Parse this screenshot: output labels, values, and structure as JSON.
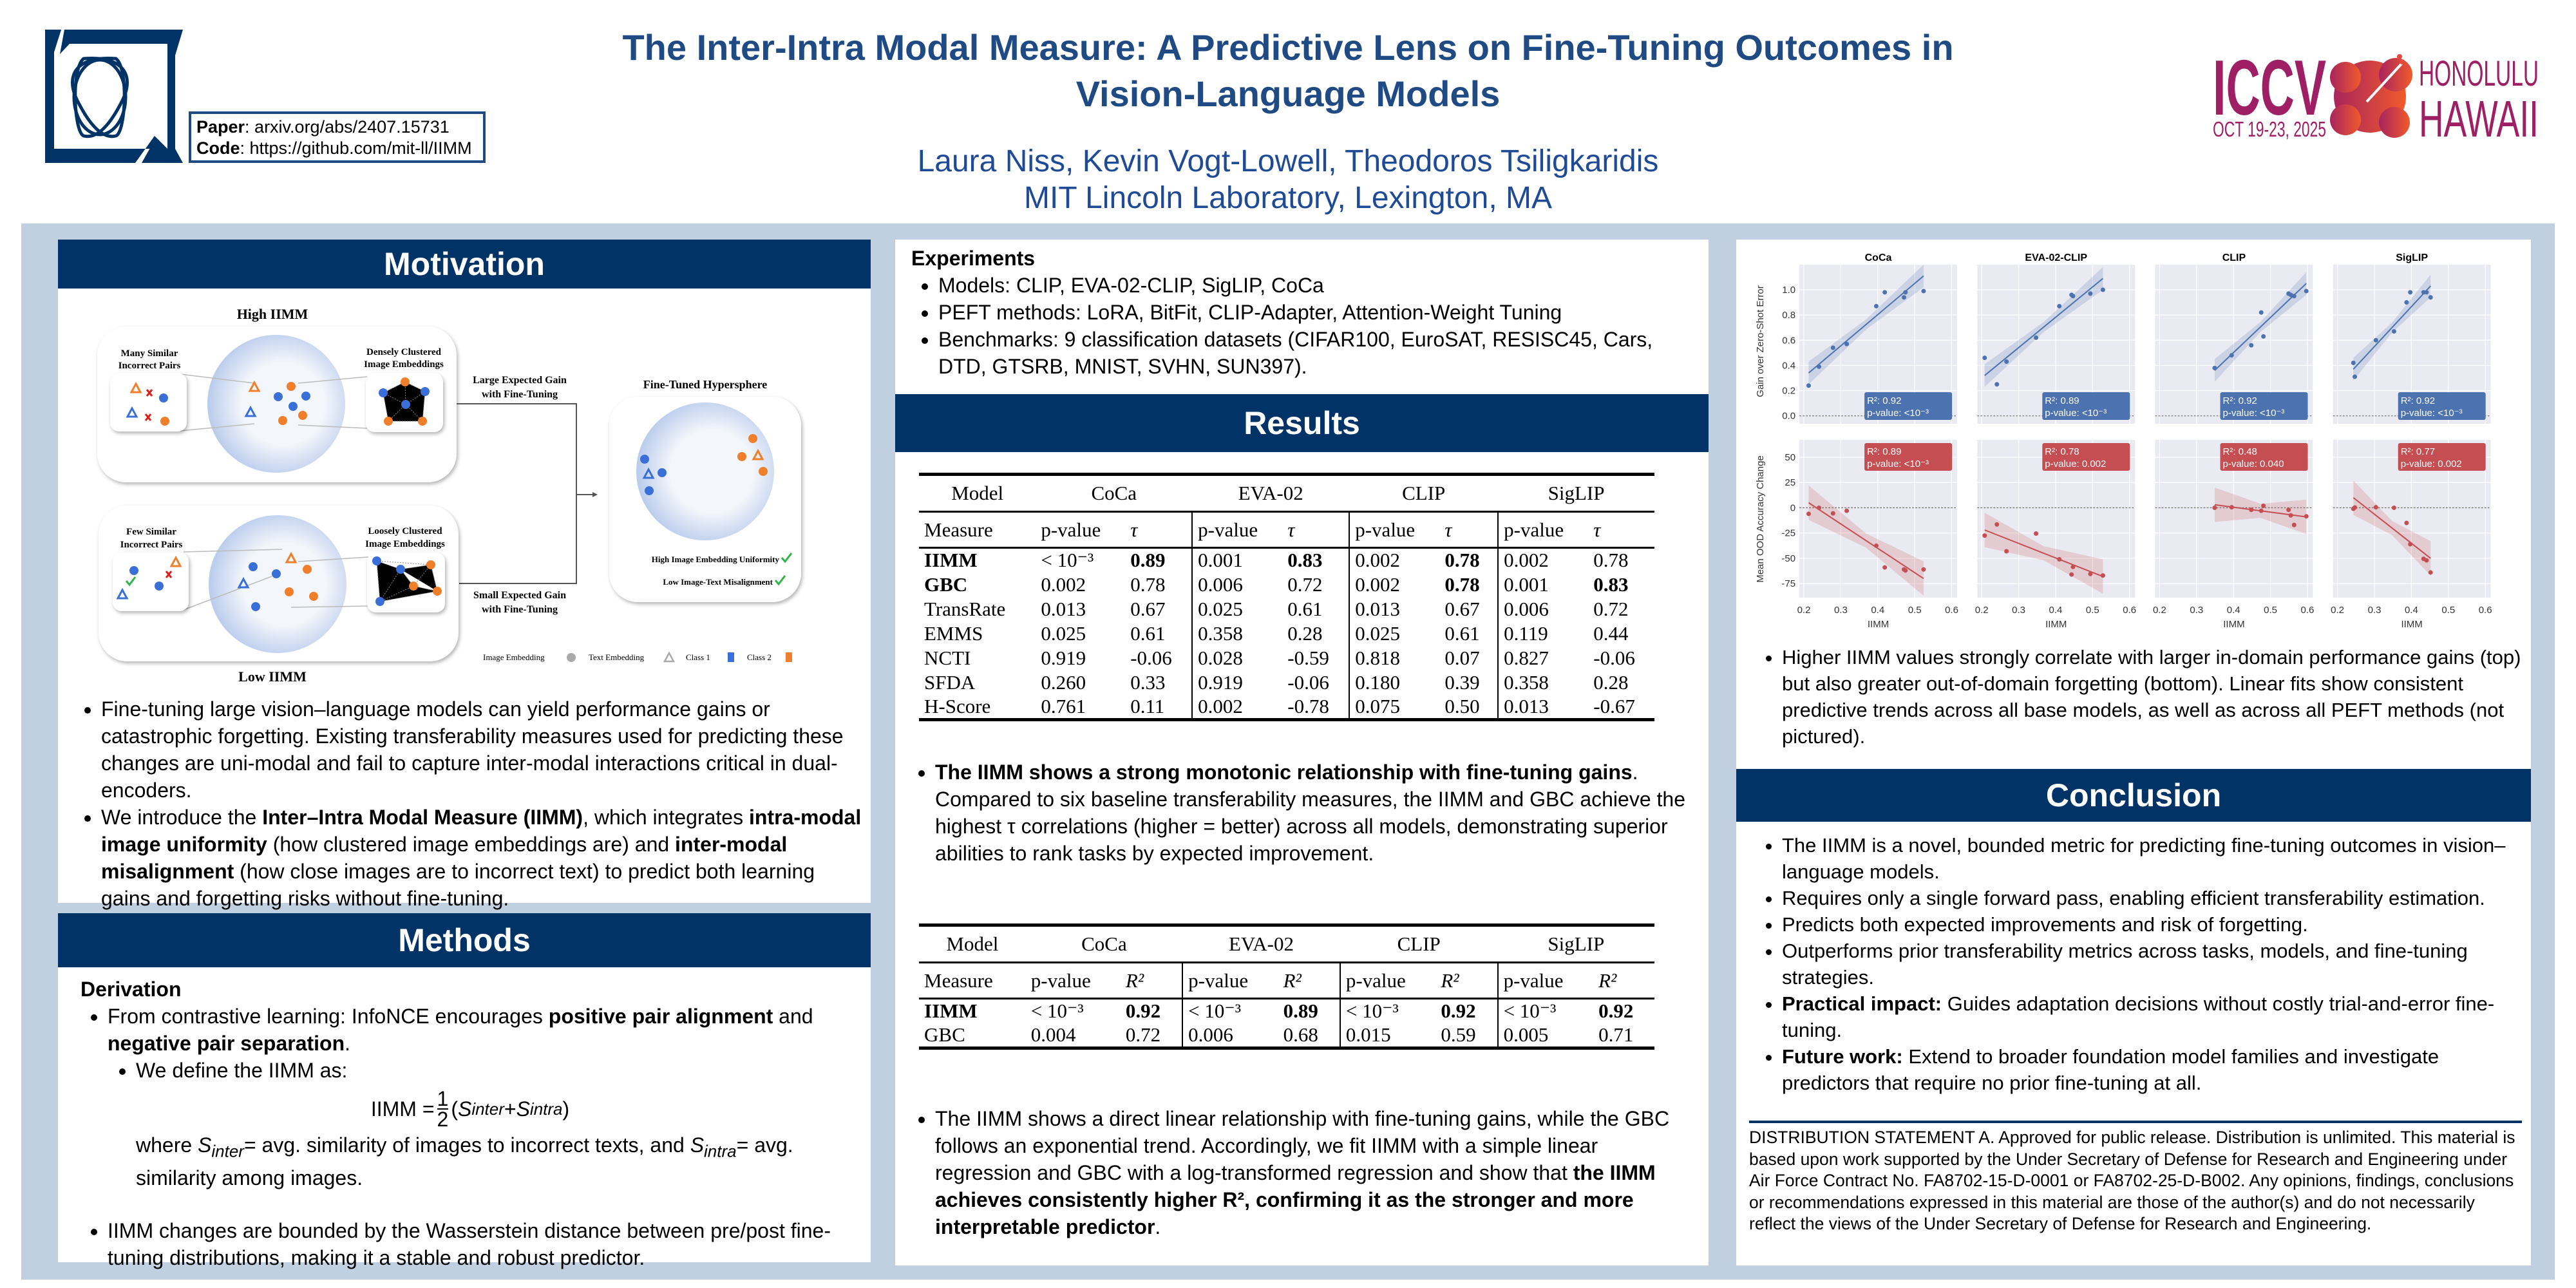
{
  "header": {
    "title_line1": "The Inter-Intra Modal Measure: A Predictive Lens on Fine-Tuning Outcomes in",
    "title_line2": "Vision-Language Models",
    "authors": "Laura Niss, Kevin Vogt-Lowell, Theodoros Tsiligkaridis",
    "affiliation": "MIT Lincoln Laboratory, Lexington, MA",
    "paper_label": "Paper",
    "paper_value": ": arxiv.org/abs/2407.15731",
    "code_label": "Code",
    "code_value": ": https://github.com/mit-ll/IIMM",
    "conference_logo": {
      "name": "ICCV",
      "dates": "OCT 19-23, 2025",
      "city": "HONOLULU",
      "state": "HAWAII"
    }
  },
  "colors": {
    "navy": "#023366",
    "title_blue": "#1f4a84",
    "fit_blue": "#4c72b0",
    "fit_red": "#c44e52",
    "class1": "#3a6fd8",
    "class2": "#f07f2c",
    "iccv": "#9e1f63"
  },
  "motivation": {
    "heading": "Motivation",
    "figure": {
      "high_title": "High IIMM",
      "low_title": "Low IIMM",
      "many_similar": [
        "Many Similar",
        "Incorrect Pairs"
      ],
      "dense": [
        "Densely Clustered",
        "Image Embeddings"
      ],
      "few_similar": [
        "Few Similar",
        "Incorrect Pairs"
      ],
      "loose": [
        "Loosely Clustered",
        "Image Embeddings"
      ],
      "large_gain": [
        "Large Expected Gain",
        "with Fine-Tuning"
      ],
      "small_gain": [
        "Small Expected Gain",
        "with Fine-Tuning"
      ],
      "finetuned_title": "Fine-Tuned Hypersphere",
      "uniformity": "High Image Embedding Uniformity",
      "misalignment": "Low Image-Text Misalignment",
      "legend": {
        "image": "Image Embedding",
        "text": "Text Embedding",
        "class1": "Class 1",
        "class2": "Class 2"
      }
    },
    "bullets": [
      [
        {
          "t": "Fine-tuning large vision–language models can yield performance gains or catastrophic forgetting. Existing transferability measures used for predicting these changes are uni-modal and fail to capture inter-modal interactions critical in dual-encoders.",
          "b": false
        }
      ],
      [
        {
          "t": "We introduce the ",
          "b": false
        },
        {
          "t": "Inter–Intra Modal Measure (IIMM)",
          "b": true
        },
        {
          "t": ", which integrates ",
          "b": false
        },
        {
          "t": "intra-modal image uniformity",
          "b": true
        },
        {
          "t": " (how clustered image embeddings are) and ",
          "b": false
        },
        {
          "t": "inter-modal misalignment",
          "b": true
        },
        {
          "t": " (how close images are to incorrect text) to predict both learning gains and forgetting risks without fine-tuning.",
          "b": false
        }
      ]
    ]
  },
  "methods": {
    "heading": "Methods",
    "subheading": "Derivation",
    "bullet1": [
      {
        "t": "From contrastive learning: InfoNCE encourages ",
        "b": false
      },
      {
        "t": "positive pair alignment",
        "b": true
      },
      {
        "t": " and ",
        "b": false
      },
      {
        "t": "negative pair separation",
        "b": true
      },
      {
        "t": ".",
        "b": false
      }
    ],
    "sub_bullet": "We define the IIMM as:",
    "formula": {
      "lhs": "IIMM =",
      "num": "1",
      "den": "2",
      "open": "(",
      "s": "S",
      "inter": "inter",
      "plus": " + ",
      "intra": "intra",
      "close": ")"
    },
    "where": {
      "pre": "where ",
      "s1": "S",
      "sub1": "inter",
      "mid": "= avg. similarity of images to incorrect texts, and ",
      "s2": "S",
      "sub2": "intra",
      "post": "= avg. similarity among images."
    },
    "bullet2": "IIMM changes are bounded by the Wasserstein distance between pre/post fine-tuning distributions, making it a stable and robust predictor."
  },
  "experiments": {
    "heading": "Experiments",
    "items": [
      "Models: CLIP, EVA-02-CLIP, SigLIP, CoCa",
      "PEFT methods: LoRA, BitFit, CLIP-Adapter, Attention-Weight Tuning",
      "Benchmarks: 9 classification datasets (CIFAR100, EuroSAT, RESISC45, Cars, DTD, GTSRB, MNIST, SVHN, SUN397)."
    ]
  },
  "results": {
    "heading": "Results",
    "table1": {
      "models": [
        "Model",
        "CoCa",
        "EVA-02",
        "CLIP",
        "SigLIP"
      ],
      "subheaders": [
        "Measure",
        "p-value",
        "τ",
        "p-value",
        "τ",
        "p-value",
        "τ",
        "p-value",
        "τ"
      ],
      "rows": [
        {
          "cells": [
            "IIMM",
            "< 10⁻³",
            "0.89",
            "0.001",
            "0.83",
            "0.002",
            "0.78",
            "0.002",
            "0.78"
          ],
          "bold": [
            0,
            2,
            4,
            6
          ]
        },
        {
          "cells": [
            "GBC",
            "0.002",
            "0.78",
            "0.006",
            "0.72",
            "0.002",
            "0.78",
            "0.001",
            "0.83"
          ],
          "bold": [
            0,
            6,
            8
          ]
        },
        {
          "cells": [
            "TransRate",
            "0.013",
            "0.67",
            "0.025",
            "0.61",
            "0.013",
            "0.67",
            "0.006",
            "0.72"
          ],
          "bold": []
        },
        {
          "cells": [
            "EMMS",
            "0.025",
            "0.61",
            "0.358",
            "0.28",
            "0.025",
            "0.61",
            "0.119",
            "0.44"
          ],
          "bold": []
        },
        {
          "cells": [
            "NCTI",
            "0.919",
            "-0.06",
            "0.028",
            "-0.59",
            "0.818",
            "0.07",
            "0.827",
            "-0.06"
          ],
          "bold": []
        },
        {
          "cells": [
            "SFDA",
            "0.260",
            "0.33",
            "0.919",
            "-0.06",
            "0.180",
            "0.39",
            "0.358",
            "0.28"
          ],
          "bold": []
        },
        {
          "cells": [
            "H-Score",
            "0.761",
            "0.11",
            "0.002",
            "-0.78",
            "0.075",
            "0.50",
            "0.013",
            "-0.67"
          ],
          "bold": []
        }
      ]
    },
    "para1": [
      {
        "t": "The IIMM shows a strong monotonic relationship with fine-tuning gains",
        "b": true
      },
      {
        "t": ". Compared to six baseline transferability measures, the IIMM and GBC achieve the highest τ correlations (higher = better) across all models, demonstrating superior abilities to rank tasks by expected improvement.",
        "b": false
      }
    ],
    "table2": {
      "models": [
        "Model",
        "CoCa",
        "EVA-02",
        "CLIP",
        "SigLIP"
      ],
      "subheaders": [
        "Measure",
        "p-value",
        "R²",
        "p-value",
        "R²",
        "p-value",
        "R²",
        "p-value",
        "R²"
      ],
      "rows": [
        {
          "cells": [
            "IIMM",
            "< 10⁻³",
            "0.92",
            "< 10⁻³",
            "0.89",
            "< 10⁻³",
            "0.92",
            "< 10⁻³",
            "0.92"
          ],
          "bold": [
            0,
            2,
            4,
            6,
            8
          ]
        },
        {
          "cells": [
            "GBC",
            "0.004",
            "0.72",
            "0.006",
            "0.68",
            "0.015",
            "0.59",
            "0.005",
            "0.71"
          ],
          "bold": []
        }
      ]
    },
    "para2": [
      {
        "t": "The IIMM shows a direct linear relationship with fine-tuning gains, while the GBC follows an exponential trend. Accordingly, we fit IIMM with a simple linear regression and GBC with a log-transformed regression and show that ",
        "b": false
      },
      {
        "t": "the IIMM achieves consistently higher R², confirming it as the stronger and more interpretable predictor",
        "b": true
      },
      {
        "t": ".",
        "b": false
      }
    ]
  },
  "chart_data": {
    "type": "scatter",
    "title": "",
    "xlabel": "IIMM",
    "ylabel_top": "Gain over Zero-Shot Error",
    "ylabel_bottom": "Mean OOD Accuracy Change",
    "x_ticks": [
      "0.2",
      "0.3",
      "0.4",
      "0.5",
      "0.6"
    ],
    "xlim": [
      0.2,
      0.6
    ],
    "y_ticks_top": [
      "0.0",
      "0.2",
      "0.4",
      "0.6",
      "0.8",
      "1.0"
    ],
    "ylim_top": [
      -0.05,
      1.2
    ],
    "y_ticks_bottom": [
      "-75",
      "-50",
      "-25",
      "0",
      "25",
      "50"
    ],
    "ylim_bottom": [
      -90,
      68
    ],
    "grid": true,
    "models": [
      "CoCa",
      "EVA-02-CLIP",
      "CLIP",
      "SigLIP"
    ],
    "top": [
      {
        "model": "CoCa",
        "r2": "R²: 0.92",
        "p": "p-value: <10⁻³",
        "points": [
          [
            0.213,
            0.24
          ],
          [
            0.241,
            0.39
          ],
          [
            0.279,
            0.54
          ],
          [
            0.316,
            0.57
          ],
          [
            0.396,
            0.87
          ],
          [
            0.419,
            0.98
          ],
          [
            0.471,
            0.94
          ],
          [
            0.475,
            0.98
          ],
          [
            0.524,
            0.99
          ]
        ],
        "fit": [
          [
            0.213,
            0.34
          ],
          [
            0.524,
            1.11
          ]
        ]
      },
      {
        "model": "EVA-02-CLIP",
        "r2": "R²: 0.89",
        "p": "p-value: <10⁻³",
        "points": [
          [
            0.208,
            0.46
          ],
          [
            0.241,
            0.25
          ],
          [
            0.267,
            0.43
          ],
          [
            0.347,
            0.62
          ],
          [
            0.41,
            0.87
          ],
          [
            0.443,
            0.96
          ],
          [
            0.447,
            0.95
          ],
          [
            0.494,
            0.97
          ],
          [
            0.528,
            1.0
          ]
        ],
        "fit": [
          [
            0.208,
            0.32
          ],
          [
            0.528,
            1.09
          ]
        ]
      },
      {
        "model": "CLIP",
        "r2": "R²: 0.92",
        "p": "p-value: <10⁻³",
        "points": [
          [
            0.349,
            0.38
          ],
          [
            0.395,
            0.48
          ],
          [
            0.448,
            0.56
          ],
          [
            0.475,
            0.82
          ],
          [
            0.481,
            0.63
          ],
          [
            0.549,
            0.97
          ],
          [
            0.555,
            0.96
          ],
          [
            0.564,
            0.95
          ],
          [
            0.597,
            0.99
          ]
        ],
        "fit": [
          [
            0.349,
            0.36
          ],
          [
            0.597,
            1.05
          ]
        ]
      },
      {
        "model": "SigLIP",
        "r2": "R²: 0.92",
        "p": "p-value: <10⁻³",
        "points": [
          [
            0.243,
            0.42
          ],
          [
            0.247,
            0.31
          ],
          [
            0.304,
            0.6
          ],
          [
            0.353,
            0.67
          ],
          [
            0.387,
            0.9
          ],
          [
            0.397,
            0.98
          ],
          [
            0.433,
            0.98
          ],
          [
            0.441,
            0.98
          ],
          [
            0.452,
            0.94
          ]
        ],
        "fit": [
          [
            0.243,
            0.37
          ],
          [
            0.452,
            1.03
          ]
        ]
      }
    ],
    "bottom": [
      {
        "model": "CoCa",
        "r2": "R²: 0.89",
        "p": "p-value: <10⁻³",
        "points": [
          [
            0.213,
            -6
          ],
          [
            0.241,
            0
          ],
          [
            0.279,
            -5.5
          ],
          [
            0.316,
            -3
          ],
          [
            0.396,
            -37.5
          ],
          [
            0.419,
            -59
          ],
          [
            0.471,
            -61
          ],
          [
            0.475,
            -62
          ],
          [
            0.524,
            -61
          ]
        ],
        "fit": [
          [
            0.213,
            5
          ],
          [
            0.524,
            -70
          ]
        ]
      },
      {
        "model": "EVA-02-CLIP",
        "r2": "R²: 0.78",
        "p": "p-value: 0.002",
        "points": [
          [
            0.208,
            -27.5
          ],
          [
            0.241,
            -16.5
          ],
          [
            0.267,
            -43
          ],
          [
            0.347,
            -25.5
          ],
          [
            0.41,
            -51
          ],
          [
            0.443,
            -66
          ],
          [
            0.447,
            -58.5
          ],
          [
            0.494,
            -65.5
          ],
          [
            0.528,
            -67
          ]
        ],
        "fit": [
          [
            0.208,
            -22
          ],
          [
            0.528,
            -68
          ]
        ]
      },
      {
        "model": "CLIP",
        "r2": "R²: 0.48",
        "p": "p-value: 0.040",
        "points": [
          [
            0.349,
            0
          ],
          [
            0.395,
            0.5
          ],
          [
            0.448,
            -2
          ],
          [
            0.475,
            -3
          ],
          [
            0.481,
            2
          ],
          [
            0.549,
            -2
          ],
          [
            0.555,
            -7.5
          ],
          [
            0.564,
            -17
          ],
          [
            0.597,
            -8.5
          ]
        ],
        "fit": [
          [
            0.349,
            3
          ],
          [
            0.597,
            -9
          ]
        ]
      },
      {
        "model": "SigLIP",
        "r2": "R²: 0.77",
        "p": "p-value: 0.002",
        "points": [
          [
            0.243,
            -1
          ],
          [
            0.247,
            0.3
          ],
          [
            0.304,
            0.5
          ],
          [
            0.353,
            0
          ],
          [
            0.387,
            -15
          ],
          [
            0.397,
            -36
          ],
          [
            0.433,
            -50.5
          ],
          [
            0.441,
            -52
          ],
          [
            0.452,
            -64
          ]
        ],
        "fit": [
          [
            0.243,
            10
          ],
          [
            0.452,
            -50
          ]
        ]
      }
    ]
  },
  "charts_caption": "Higher IIMM values strongly correlate with larger in-domain performance gains (top) but also greater out-of-domain forgetting (bottom). Linear fits show consistent predictive trends across all base models, as well as across all PEFT methods (not pictured).",
  "conclusion": {
    "heading": "Conclusion",
    "bullets": [
      [
        {
          "t": "The IIMM is a novel, bounded metric for predicting fine-tuning outcomes in vision–language models.",
          "b": false
        }
      ],
      [
        {
          "t": "Requires only a single forward pass, enabling efficient transferability estimation.",
          "b": false
        }
      ],
      [
        {
          "t": "Predicts both expected improvements and risk of forgetting.",
          "b": false
        }
      ],
      [
        {
          "t": "Outperforms prior transferability metrics across tasks, models, and fine-tuning strategies.",
          "b": false
        }
      ],
      [
        {
          "t": "Practical impact:",
          "b": true
        },
        {
          "t": " Guides adaptation decisions without costly trial-and-error fine-tuning.",
          "b": false
        }
      ],
      [
        {
          "t": "Future work:",
          "b": true
        },
        {
          "t": " Extend to broader foundation model families and investigate predictors that require no prior fine-tuning at all.",
          "b": false
        }
      ]
    ]
  },
  "distribution": "DISTRIBUTION STATEMENT A. Approved for public release. Distribution is unlimited. This material is based upon work supported by the Under Secretary of Defense for Research and Engineering under Air Force Contract No. FA8702-15-D-0001 or FA8702-25-D-B002. Any opinions, findings, conclusions or recommendations expressed in this material are those of the author(s) and do not necessarily reflect the views of the Under Secretary of Defense for Research and Engineering."
}
